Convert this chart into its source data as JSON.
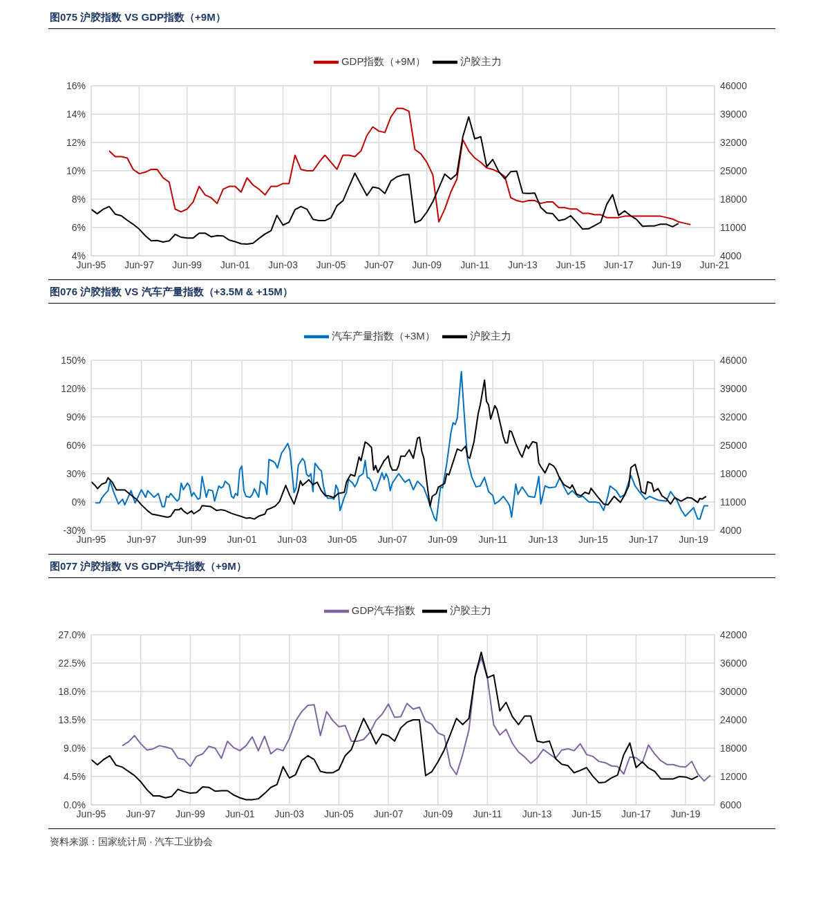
{
  "chart_data": [
    {
      "type": "line",
      "title": "图075 沪胶指数 VS GDP指数（+9M）",
      "legend": "top",
      "grid": true,
      "x": [
        "1995-06",
        "1995-09",
        "1995-12",
        "1996-03",
        "1996-06",
        "1996-09",
        "1996-12",
        "1997-03",
        "1997-06",
        "1997-09",
        "1997-12",
        "1998-03",
        "1998-06",
        "1998-09",
        "1998-12",
        "1999-03",
        "1999-06",
        "1999-09",
        "1999-12",
        "2000-03",
        "2000-06",
        "2000-09",
        "2000-12",
        "2001-03",
        "2001-06",
        "2001-09",
        "2001-12",
        "2002-03",
        "2002-06",
        "2002-09",
        "2002-12",
        "2003-03",
        "2003-06",
        "2003-09",
        "2003-12",
        "2004-03",
        "2004-06",
        "2004-09",
        "2004-12",
        "2005-03",
        "2005-06",
        "2005-09",
        "2005-12",
        "2006-03",
        "2006-06",
        "2006-09",
        "2006-12",
        "2007-03",
        "2007-06",
        "2007-09",
        "2007-12",
        "2008-03",
        "2008-06",
        "2008-09",
        "2008-12",
        "2009-03",
        "2009-06",
        "2009-09",
        "2009-12",
        "2010-03",
        "2010-06",
        "2010-09",
        "2010-12",
        "2011-03",
        "2011-06",
        "2011-09",
        "2011-12",
        "2012-03",
        "2012-06",
        "2012-09",
        "2012-12",
        "2013-03",
        "2013-06",
        "2013-09",
        "2013-12",
        "2014-03",
        "2014-06",
        "2014-09",
        "2014-12",
        "2015-03",
        "2015-06",
        "2015-09",
        "2015-12",
        "2016-03",
        "2016-06",
        "2016-09",
        "2016-12",
        "2017-03",
        "2017-06",
        "2017-09",
        "2017-12",
        "2018-03",
        "2018-06",
        "2018-09",
        "2018-12",
        "2019-03",
        "2019-06",
        "2019-09",
        "2019-12",
        "2020-03",
        "2020-06"
      ],
      "xlim": [
        "1995-06",
        "2021-06"
      ],
      "xticks": [
        {
          "value": "1995-06",
          "label": "Jun-95"
        },
        {
          "value": "1997-06",
          "label": "Jun-97"
        },
        {
          "value": "1999-06",
          "label": "Jun-99"
        },
        {
          "value": "2001-06",
          "label": "Jun-01"
        },
        {
          "value": "2003-06",
          "label": "Jun-03"
        },
        {
          "value": "2005-06",
          "label": "Jun-05"
        },
        {
          "value": "2007-06",
          "label": "Jun-07"
        },
        {
          "value": "2009-06",
          "label": "Jun-09"
        },
        {
          "value": "2011-06",
          "label": "Jun-11"
        },
        {
          "value": "2013-06",
          "label": "Jun-13"
        },
        {
          "value": "2015-06",
          "label": "Jun-15"
        },
        {
          "value": "2017-06",
          "label": "Jun-17"
        },
        {
          "value": "2019-06",
          "label": "Jun-19"
        },
        {
          "value": "2021-06",
          "label": "Jun-21"
        }
      ],
      "ylim": [
        4,
        16
      ],
      "yticks": [
        {
          "value": 4,
          "label": "4%"
        },
        {
          "value": 6,
          "label": "6%"
        },
        {
          "value": 8,
          "label": "8%"
        },
        {
          "value": 10,
          "label": "10%"
        },
        {
          "value": 12,
          "label": "12%"
        },
        {
          "value": 14,
          "label": "14%"
        },
        {
          "value": 16,
          "label": "16%"
        }
      ],
      "y2lim": [
        4000,
        46000
      ],
      "y2ticks": [
        4000,
        11000,
        18000,
        25000,
        32000,
        39000,
        46000
      ],
      "series": [
        {
          "name": "GDP指数（+9M）",
          "color": "#c00000",
          "values": [
            null,
            null,
            null,
            11.4,
            11.0,
            11.0,
            10.9,
            10.1,
            9.8,
            9.9,
            10.1,
            10.1,
            9.5,
            9.2,
            7.3,
            7.1,
            7.3,
            7.8,
            8.9,
            8.3,
            8.1,
            7.7,
            8.7,
            8.9,
            8.9,
            8.5,
            9.5,
            9.0,
            8.7,
            8.3,
            8.9,
            8.9,
            9.1,
            9.1,
            11.1,
            10.1,
            10.0,
            10.0,
            10.6,
            11.1,
            10.6,
            10.1,
            11.1,
            11.1,
            11.0,
            11.4,
            12.5,
            13.1,
            12.8,
            12.7,
            13.8,
            14.4,
            14.4,
            14.2,
            11.5,
            11.2,
            10.6,
            9.7,
            6.4,
            7.3,
            8.5,
            9.4,
            12.2,
            11.4,
            10.9,
            10.6,
            10.2,
            10.1,
            9.9,
            9.6,
            8.1,
            7.9,
            7.8,
            7.9,
            7.9,
            7.7,
            7.8,
            7.8,
            7.4,
            7.4,
            7.3,
            7.3,
            7.0,
            7.0,
            6.9,
            6.9,
            6.7,
            6.7,
            6.7,
            6.8,
            6.8,
            6.8,
            6.8,
            6.8,
            6.8,
            6.8,
            6.7,
            6.6,
            6.4,
            6.3,
            6.2
          ]
        },
        {
          "name": "沪胶主力",
          "color": "#000000",
          "axis": "y2",
          "values": [
            15500,
            14400,
            15500,
            16200,
            14300,
            13900,
            12800,
            11800,
            10600,
            9000,
            7700,
            7800,
            7400,
            7700,
            9300,
            8600,
            8400,
            8400,
            9600,
            9600,
            8700,
            9000,
            8900,
            7900,
            7500,
            7000,
            6900,
            7100,
            8300,
            9400,
            10200,
            14000,
            11600,
            12300,
            15400,
            16200,
            15500,
            13000,
            12700,
            12700,
            13400,
            16400,
            17600,
            21000,
            24400,
            21600,
            18900,
            21000,
            20700,
            19400,
            22500,
            23500,
            24000,
            24100,
            12200,
            12800,
            14800,
            17400,
            20800,
            24200,
            22900,
            24200,
            33400,
            38300,
            32900,
            33400,
            26000,
            27800,
            24800,
            23000,
            24800,
            24900,
            19500,
            19400,
            19500,
            16000,
            14600,
            14400,
            12700,
            13000,
            13900,
            12300,
            10600,
            10700,
            11500,
            12300,
            16700,
            19100,
            14000,
            15100,
            13900,
            13000,
            11300,
            11400,
            11400,
            11800,
            11800,
            11200,
            12000,
            null,
            null
          ]
        }
      ]
    },
    {
      "type": "line",
      "title": "图076 沪胶指数 VS 汽车产量指数（+3.5M & +15M）",
      "legend": "top",
      "grid": true,
      "xlim": [
        "1995-06",
        "2020-04"
      ],
      "xticks": [
        {
          "value": "1995-06",
          "label": "Jun-95"
        },
        {
          "value": "1997-06",
          "label": "Jun-97"
        },
        {
          "value": "1999-06",
          "label": "Jun-99"
        },
        {
          "value": "2001-06",
          "label": "Jun-01"
        },
        {
          "value": "2003-06",
          "label": "Jun-03"
        },
        {
          "value": "2005-06",
          "label": "Jun-05"
        },
        {
          "value": "2007-06",
          "label": "Jun-07"
        },
        {
          "value": "2009-06",
          "label": "Jun-09"
        },
        {
          "value": "2011-06",
          "label": "Jun-11"
        },
        {
          "value": "2013-06",
          "label": "Jun-13"
        },
        {
          "value": "2015-06",
          "label": "Jun-15"
        },
        {
          "value": "2017-06",
          "label": "Jun-17"
        },
        {
          "value": "2019-06",
          "label": "Jun-19"
        }
      ],
      "ylim": [
        -30,
        150
      ],
      "yticks": [
        {
          "value": -30,
          "label": "-30%"
        },
        {
          "value": 0,
          "label": "0%"
        },
        {
          "value": 30,
          "label": "30%"
        },
        {
          "value": 60,
          "label": "60%"
        },
        {
          "value": 90,
          "label": "90%"
        },
        {
          "value": 120,
          "label": "120%"
        },
        {
          "value": 150,
          "label": "150%"
        }
      ],
      "y2lim": [
        4000,
        46000
      ],
      "y2ticks": [
        4000,
        11000,
        18000,
        25000,
        32000,
        39000,
        46000
      ],
      "series": [
        {
          "name": "汽车产量指数（+3M）",
          "color": "#0070c0",
          "x": [
            "1995-08",
            "1995-10",
            "1995-11",
            "1995-12",
            "1996-02",
            "1996-03",
            "1996-05",
            "1996-07",
            "1996-09",
            "1996-10",
            "1997-01",
            "1997-03",
            "1997-06",
            "1997-08",
            "1997-09",
            "1997-12",
            "1998-02",
            "1998-04",
            "1998-05",
            "1998-06",
            "1998-07",
            "1998-08",
            "1998-11",
            "1998-12",
            "1999-01",
            "1999-02",
            "1999-04",
            "1999-05",
            "1999-06",
            "1999-07",
            "1999-09",
            "1999-10",
            "1999-11",
            "2000-01",
            "2000-02",
            "2000-04",
            "2000-05",
            "2000-07",
            "2000-08",
            "2000-09",
            "2000-10",
            "2000-12",
            "2001-01",
            "2001-02",
            "2001-03",
            "2001-04",
            "2001-05",
            "2001-06",
            "2001-07",
            "2001-08",
            "2001-10",
            "2001-11",
            "2001-12",
            "2002-02",
            "2002-03",
            "2002-05",
            "2002-06",
            "2002-07",
            "2002-09",
            "2002-10",
            "2002-11",
            "2002-12",
            "2003-01",
            "2003-02",
            "2003-04",
            "2003-05",
            "2003-07",
            "2003-08",
            "2003-09",
            "2003-11",
            "2003-12",
            "2004-01",
            "2004-02",
            "2004-03",
            "2004-04",
            "2004-05",
            "2004-07",
            "2004-08",
            "2004-09",
            "2004-10",
            "2004-11",
            "2005-01",
            "2005-02",
            "2005-03",
            "2005-04",
            "2005-05",
            "2005-07",
            "2005-08",
            "2005-09",
            "2005-11",
            "2005-12",
            "2006-01",
            "2006-02",
            "2006-04",
            "2006-05",
            "2006-06",
            "2006-07",
            "2006-08",
            "2006-09",
            "2006-10",
            "2006-12",
            "2007-01",
            "2007-02",
            "2007-03",
            "2007-04",
            "2007-05",
            "2007-06",
            "2007-09",
            "2007-12",
            "2008-02",
            "2008-04",
            "2008-06",
            "2008-09",
            "2008-11",
            "2008-12",
            "2009-02",
            "2009-03",
            "2009-05",
            "2009-06",
            "2009-08",
            "2009-10",
            "2009-11",
            "2009-12",
            "2010-01",
            "2010-03",
            "2010-05",
            "2010-06",
            "2010-08",
            "2010-10",
            "2010-12",
            "2011-02",
            "2011-04",
            "2011-06",
            "2011-07",
            "2011-09",
            "2011-11",
            "2012-01",
            "2012-02",
            "2012-03",
            "2012-05",
            "2012-06",
            "2012-08",
            "2012-11",
            "2013-02",
            "2013-04",
            "2013-05",
            "2013-07",
            "2013-09",
            "2013-12",
            "2014-02",
            "2014-04",
            "2014-06",
            "2014-08",
            "2014-11",
            "2015-01",
            "2015-04",
            "2015-07",
            "2015-09",
            "2015-11",
            "2016-01",
            "2016-02",
            "2016-05",
            "2016-07",
            "2016-09",
            "2016-12",
            "2017-02",
            "2017-04",
            "2017-07",
            "2017-09",
            "2018-01",
            "2018-05",
            "2018-07",
            "2018-10",
            "2018-12",
            "2019-02",
            "2019-06",
            "2019-08",
            "2019-09",
            "2019-11",
            "2020-01"
          ],
          "values": [
            -1,
            -1,
            4,
            7,
            12,
            22,
            9,
            -2,
            3,
            -3,
            12,
            -1,
            13,
            5,
            12,
            5,
            9,
            -5,
            -5,
            6,
            5,
            9,
            1,
            3,
            20,
            13,
            20,
            17,
            6,
            10,
            3,
            4,
            27,
            5,
            13,
            12,
            1,
            17,
            15,
            16,
            22,
            18,
            6,
            4,
            9,
            7,
            34,
            38,
            12,
            6,
            5,
            8,
            14,
            5,
            22,
            18,
            8,
            45,
            43,
            41,
            36,
            44,
            52,
            55,
            62,
            55,
            10,
            15,
            39,
            46,
            43,
            29,
            27,
            30,
            11,
            41,
            35,
            33,
            17,
            8,
            4,
            4,
            3,
            18,
            13,
            -9,
            5,
            10,
            24,
            20,
            16,
            20,
            27,
            30,
            44,
            26,
            25,
            21,
            13,
            12,
            24,
            31,
            24,
            30,
            25,
            12,
            20,
            30,
            21,
            24,
            13,
            22,
            15,
            3,
            -4,
            -17,
            -20,
            16,
            15,
            41,
            74,
            84,
            82,
            89,
            138,
            72,
            44,
            26,
            16,
            17,
            26,
            11,
            7,
            -2,
            1,
            6,
            0,
            -4,
            -16,
            19,
            8,
            16,
            6,
            5,
            27,
            -2,
            17,
            15,
            16,
            26,
            16,
            8,
            12,
            5,
            6,
            0,
            0,
            -1,
            -9,
            6,
            17,
            12,
            5,
            8,
            28,
            17,
            11,
            3,
            6,
            2,
            1,
            11,
            2,
            -8,
            -15,
            -6,
            -18,
            -18,
            -4,
            -4
          ]
        },
        {
          "name": "沪胶主力",
          "color": "#000000",
          "axis": "y2",
          "x": [
            "1995-06",
            "1995-08",
            "1995-09",
            "1995-11",
            "1996-01",
            "1996-02",
            "1996-04",
            "1996-06",
            "1996-10",
            "1997-01",
            "1997-04",
            "1997-06",
            "1997-09",
            "1997-11",
            "1998-02",
            "1998-06",
            "1998-07",
            "1998-08",
            "1998-10",
            "1998-12",
            "1999-01",
            "1999-02",
            "1999-04",
            "1999-06",
            "1999-07",
            "1999-10",
            "1999-11",
            "2000-03",
            "2000-06",
            "2000-08",
            "2000-10",
            "2001-01",
            "2001-04",
            "2001-06",
            "2001-08",
            "2001-10",
            "2001-12",
            "2002-02",
            "2002-05",
            "2002-06",
            "2002-08",
            "2002-10",
            "2002-12",
            "2003-03",
            "2003-05",
            "2003-07",
            "2003-09",
            "2003-10",
            "2003-11",
            "2004-02",
            "2004-04",
            "2004-06",
            "2004-08",
            "2004-10",
            "2004-11",
            "2005-02",
            "2005-04",
            "2005-07",
            "2005-08",
            "2005-10",
            "2005-12",
            "2006-02",
            "2006-03",
            "2006-05",
            "2006-06",
            "2006-08",
            "2006-09",
            "2006-10",
            "2006-11",
            "2007-02",
            "2007-03",
            "2007-04",
            "2007-05",
            "2007-06",
            "2007-08",
            "2007-09",
            "2007-10",
            "2007-12",
            "2008-02",
            "2008-04",
            "2008-06",
            "2008-07",
            "2008-08",
            "2008-09",
            "2008-11",
            "2008-12",
            "2009-01",
            "2009-03",
            "2009-04",
            "2009-07",
            "2009-08",
            "2009-09",
            "2009-11",
            "2010-01",
            "2010-03",
            "2010-05",
            "2010-06",
            "2010-07",
            "2010-09",
            "2010-11",
            "2010-12",
            "2011-02",
            "2011-03",
            "2011-04",
            "2011-05",
            "2011-07",
            "2011-08",
            "2011-11",
            "2011-12",
            "2012-01",
            "2012-02",
            "2012-03",
            "2012-05",
            "2012-07",
            "2012-08",
            "2012-10",
            "2012-11",
            "2013-01",
            "2013-03",
            "2013-04",
            "2013-05",
            "2013-07",
            "2013-09",
            "2013-11",
            "2013-12",
            "2014-02",
            "2014-04",
            "2014-07",
            "2014-08",
            "2014-10",
            "2014-12",
            "2015-02",
            "2015-04",
            "2015-05",
            "2015-08",
            "2015-11",
            "2016-01",
            "2016-04",
            "2016-07",
            "2016-09",
            "2016-11",
            "2016-12",
            "2017-02",
            "2017-04",
            "2017-05",
            "2017-07",
            "2017-08",
            "2017-10",
            "2017-11",
            "2018-01",
            "2018-03",
            "2018-05",
            "2018-07",
            "2018-09",
            "2018-12",
            "2019-03",
            "2019-05",
            "2019-08",
            "2019-09",
            "2019-10",
            "2019-12"
          ],
          "values": [
            16000,
            15000,
            14300,
            15400,
            15800,
            17000,
            15900,
            14000,
            14000,
            12700,
            11500,
            10300,
            8800,
            8000,
            7700,
            7300,
            7300,
            7500,
            9100,
            9100,
            9500,
            8800,
            8100,
            8800,
            8100,
            9100,
            10100,
            9900,
            8900,
            9100,
            8900,
            8200,
            7700,
            7400,
            7000,
            7100,
            6800,
            7500,
            8000,
            9100,
            9500,
            10000,
            11100,
            15100,
            12600,
            10500,
            13800,
            16200,
            15100,
            16500,
            15300,
            15900,
            13800,
            12500,
            12600,
            12100,
            13100,
            13400,
            15900,
            17800,
            17400,
            22100,
            21200,
            25800,
            25500,
            24500,
            18900,
            20000,
            18300,
            21200,
            21700,
            22400,
            20000,
            18900,
            18900,
            20000,
            22300,
            22300,
            23900,
            21800,
            26800,
            27000,
            23600,
            21800,
            13600,
            10000,
            12400,
            13100,
            14700,
            15600,
            18000,
            17700,
            20900,
            24100,
            23600,
            24800,
            22100,
            21800,
            25900,
            32900,
            35000,
            41100,
            35900,
            35000,
            31500,
            34800,
            33900,
            27100,
            25600,
            25600,
            28600,
            28300,
            25400,
            23000,
            22100,
            25100,
            24200,
            25900,
            25600,
            20600,
            19700,
            18200,
            20500,
            19900,
            19200,
            16800,
            15300,
            14400,
            15200,
            13000,
            12500,
            13400,
            13000,
            14400,
            12400,
            10500,
            10300,
            12400,
            10900,
            12700,
            15000,
            19500,
            20300,
            16500,
            13600,
            13000,
            16000,
            15600,
            13600,
            14300,
            12500,
            11800,
            10500,
            12100,
            11200,
            12100,
            12000,
            10900,
            11900,
            11700,
            12400
          ]
        }
      ]
    },
    {
      "type": "line",
      "title": "图077 沪胶指数 VS GDP汽车指数（+9M）",
      "legend": "top",
      "grid": true,
      "x": [
        "1995-06",
        "1995-09",
        "1995-12",
        "1996-03",
        "1996-06",
        "1996-09",
        "1996-12",
        "1997-03",
        "1997-06",
        "1997-09",
        "1997-12",
        "1998-03",
        "1998-06",
        "1998-09",
        "1998-12",
        "1999-03",
        "1999-06",
        "1999-09",
        "1999-12",
        "2000-03",
        "2000-06",
        "2000-09",
        "2000-12",
        "2001-03",
        "2001-06",
        "2001-09",
        "2001-12",
        "2002-03",
        "2002-06",
        "2002-09",
        "2002-12",
        "2003-03",
        "2003-06",
        "2003-09",
        "2003-12",
        "2004-03",
        "2004-06",
        "2004-09",
        "2004-12",
        "2005-03",
        "2005-06",
        "2005-09",
        "2005-12",
        "2006-03",
        "2006-06",
        "2006-09",
        "2006-12",
        "2007-03",
        "2007-06",
        "2007-09",
        "2007-12",
        "2008-03",
        "2008-06",
        "2008-09",
        "2008-12",
        "2009-03",
        "2009-06",
        "2009-09",
        "2009-12",
        "2010-03",
        "2010-06",
        "2010-09",
        "2010-12",
        "2011-03",
        "2011-06",
        "2011-09",
        "2011-12",
        "2012-03",
        "2012-06",
        "2012-09",
        "2012-12",
        "2013-03",
        "2013-06",
        "2013-09",
        "2013-12",
        "2014-03",
        "2014-06",
        "2014-09",
        "2014-12",
        "2015-03",
        "2015-06",
        "2015-09",
        "2015-12",
        "2016-03",
        "2016-06",
        "2016-09",
        "2016-12",
        "2017-03",
        "2017-06",
        "2017-09",
        "2017-12",
        "2018-03",
        "2018-06",
        "2018-09",
        "2018-12",
        "2019-03",
        "2019-06",
        "2019-09",
        "2019-12",
        "2020-03",
        "2020-06"
      ],
      "xlim": [
        "1995-06",
        "2020-08"
      ],
      "xticks": [
        {
          "value": "1995-06",
          "label": "Jun-95"
        },
        {
          "value": "1997-06",
          "label": "Jun-97"
        },
        {
          "value": "1999-06",
          "label": "Jun-99"
        },
        {
          "value": "2001-06",
          "label": "Jun-01"
        },
        {
          "value": "2003-06",
          "label": "Jun-03"
        },
        {
          "value": "2005-06",
          "label": "Jun-05"
        },
        {
          "value": "2007-06",
          "label": "Jun-07"
        },
        {
          "value": "2009-06",
          "label": "Jun-09"
        },
        {
          "value": "2011-06",
          "label": "Jun-11"
        },
        {
          "value": "2013-06",
          "label": "Jun-13"
        },
        {
          "value": "2015-06",
          "label": "Jun-15"
        },
        {
          "value": "2017-06",
          "label": "Jun-17"
        },
        {
          "value": "2019-06",
          "label": "Jun-19"
        }
      ],
      "ylim": [
        0,
        27
      ],
      "yticks": [
        {
          "value": 0,
          "label": "0.0%"
        },
        {
          "value": 4.5,
          "label": "4.5%"
        },
        {
          "value": 9,
          "label": "9.0%"
        },
        {
          "value": 13.5,
          "label": "13.5%"
        },
        {
          "value": 18,
          "label": "18.0%"
        },
        {
          "value": 22.5,
          "label": "22.5%"
        },
        {
          "value": 27,
          "label": "27.0%"
        }
      ],
      "y2lim": [
        6000,
        42000
      ],
      "y2ticks": [
        6000,
        12000,
        18000,
        24000,
        30000,
        36000,
        42000
      ],
      "series": [
        {
          "name": "GDP汽车指数",
          "color": "#8064a2",
          "values": [
            null,
            null,
            null,
            null,
            null,
            9.4,
            10.0,
            11.0,
            9.7,
            8.7,
            8.9,
            9.4,
            9.2,
            8.9,
            7.4,
            7.2,
            6.1,
            7.7,
            8.1,
            9.3,
            9.0,
            7.4,
            10.1,
            9.1,
            8.6,
            9.4,
            10.8,
            8.6,
            10.9,
            8.1,
            8.9,
            8.6,
            10.5,
            13.3,
            14.8,
            15.8,
            15.9,
            11.0,
            14.8,
            13.4,
            12.4,
            12.6,
            10.1,
            10.1,
            10.4,
            11.5,
            13.4,
            14.4,
            16.0,
            13.9,
            14.0,
            16.1,
            15.2,
            15.5,
            13.3,
            12.8,
            11.4,
            11.0,
            6.2,
            4.8,
            8.0,
            11.9,
            20.4,
            23.4,
            20.1,
            12.7,
            11.1,
            12.0,
            9.8,
            8.4,
            7.6,
            6.6,
            7.4,
            8.8,
            8.1,
            7.4,
            8.7,
            8.9,
            8.6,
            9.7,
            8.0,
            7.7,
            6.9,
            6.7,
            6.2,
            6.1,
            4.9,
            7.6,
            7.5,
            6.7,
            9.5,
            8.1,
            7.0,
            6.4,
            6.4,
            6.1,
            6.0,
            6.9,
            4.9,
            3.8,
            4.7
          ]
        },
        {
          "name": "沪胶主力",
          "color": "#000000",
          "axis": "y2",
          "values": [
            15600,
            14500,
            15600,
            16400,
            14400,
            14000,
            13100,
            12200,
            10900,
            9200,
            7900,
            7900,
            7500,
            7800,
            9300,
            8800,
            8500,
            8600,
            9800,
            9700,
            8900,
            9000,
            9000,
            8100,
            7500,
            7100,
            7100,
            7300,
            8400,
            9700,
            10300,
            14100,
            11700,
            12400,
            15400,
            16400,
            15600,
            13100,
            12800,
            12800,
            13500,
            16400,
            17700,
            21000,
            24300,
            21700,
            18900,
            21000,
            20600,
            19500,
            22300,
            23500,
            24000,
            24000,
            12200,
            13000,
            15100,
            17600,
            20900,
            24300,
            23000,
            24300,
            33300,
            38300,
            32900,
            33500,
            25900,
            27700,
            24700,
            23000,
            24800,
            24800,
            19500,
            19200,
            19500,
            15800,
            14600,
            14300,
            12800,
            13300,
            13900,
            12100,
            10700,
            10800,
            11700,
            12300,
            16600,
            19100,
            13900,
            15100,
            13800,
            13100,
            11500,
            11500,
            11500,
            12000,
            11900,
            11400,
            12100,
            null,
            null
          ]
        }
      ],
      "annotations": [
        "资料来源：国家统计局 · 汽车工业协会"
      ]
    }
  ]
}
